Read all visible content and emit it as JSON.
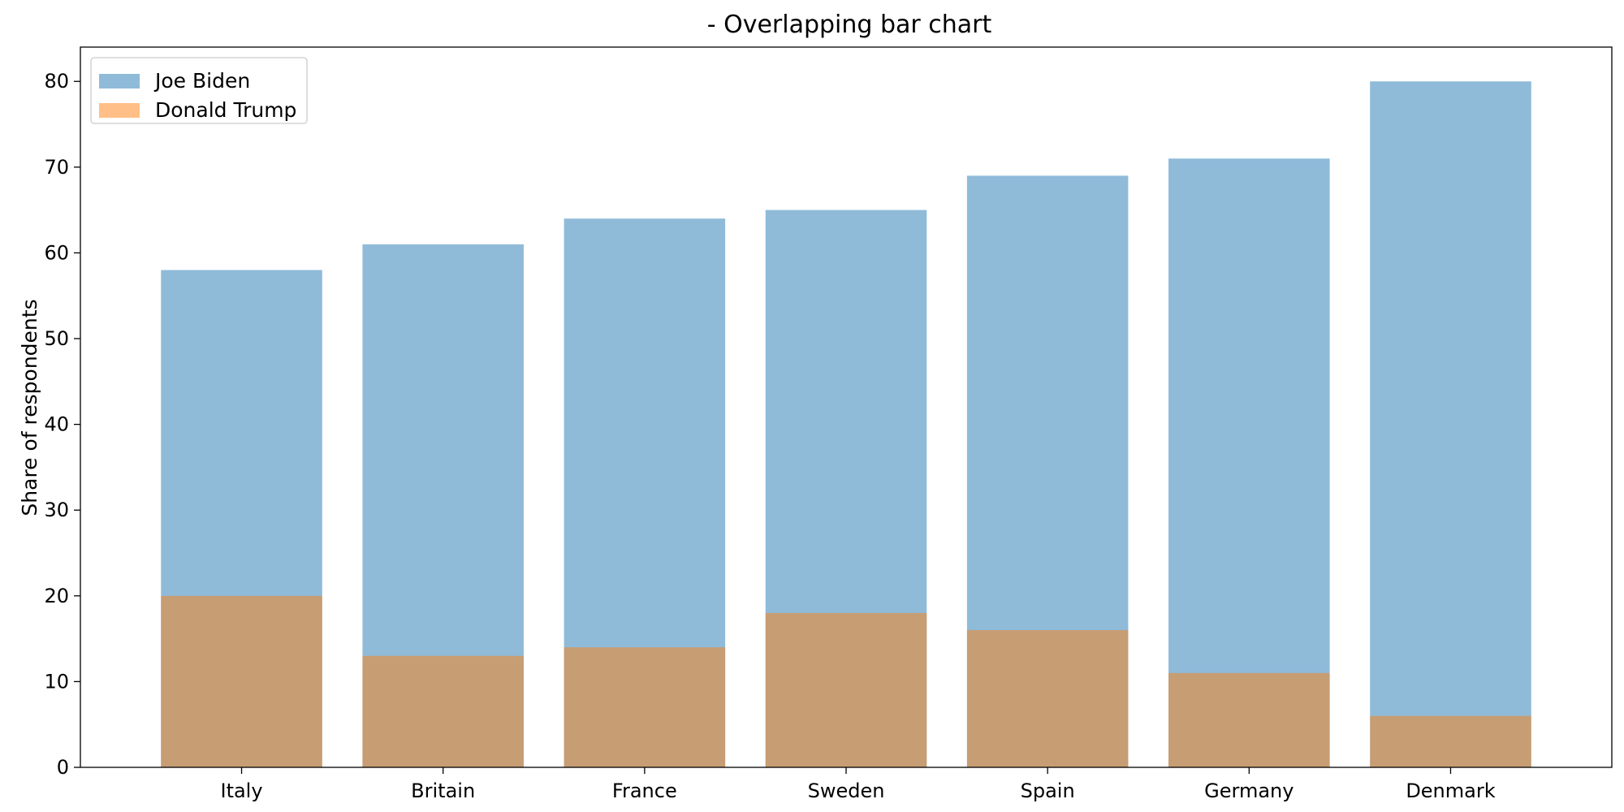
{
  "chart_data": {
    "type": "bar",
    "title": "- Overlapping bar chart",
    "xlabel": "",
    "ylabel": "Share of respondents",
    "categories": [
      "Italy",
      "Britain",
      "France",
      "Sweden",
      "Spain",
      "Germany",
      "Denmark"
    ],
    "series": [
      {
        "name": "Joe Biden",
        "values": [
          58,
          61,
          64,
          65,
          69,
          71,
          80
        ],
        "color": "#1f77b4",
        "alpha": 0.5
      },
      {
        "name": "Donald Trump",
        "values": [
          20,
          13,
          14,
          18,
          16,
          11,
          6
        ],
        "color": "#ff7f0e",
        "alpha": 0.5
      }
    ],
    "ylim": [
      0,
      84
    ],
    "yticks": [
      0,
      10,
      20,
      30,
      40,
      50,
      60,
      70,
      80
    ],
    "legend_position": "top-left",
    "grid": false,
    "overlap": true
  }
}
